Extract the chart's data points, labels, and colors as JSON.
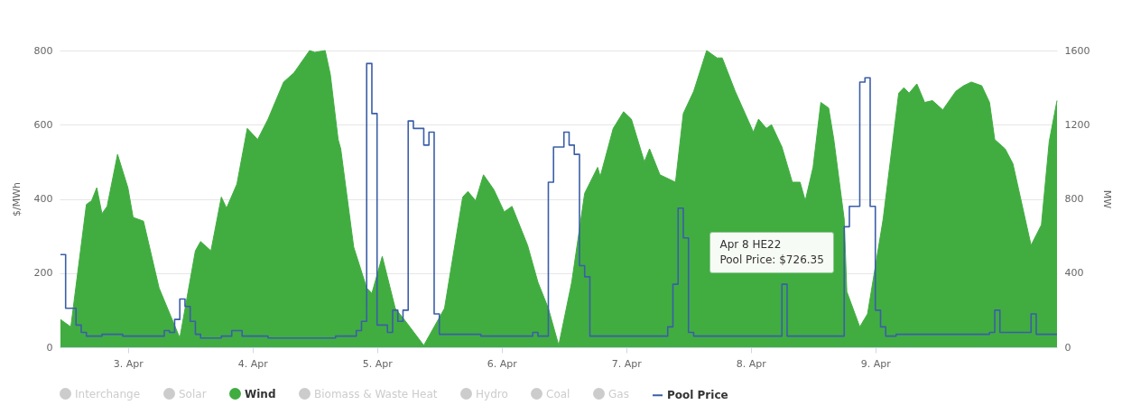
{
  "chart_data": {
    "type": "area",
    "ylabel": "$/MWh",
    "y2label": "MW",
    "xlim": [
      "--04-02T10:50",
      "--04-10T11:00"
    ],
    "xticks": [
      {
        "value": "--04-03",
        "label": "3. Apr"
      },
      {
        "value": "--04-04",
        "label": "4. Apr"
      },
      {
        "value": "--04-05",
        "label": "5. Apr"
      },
      {
        "value": "--04-06",
        "label": "6. Apr"
      },
      {
        "value": "--04-07",
        "label": "7. Apr"
      },
      {
        "value": "--04-08",
        "label": "8. Apr"
      },
      {
        "value": "--04-09",
        "label": "9. Apr"
      }
    ],
    "ylim": [
      0,
      800
    ],
    "yticks": [
      0,
      200,
      400,
      600,
      800
    ],
    "y2lim": [
      0,
      1600
    ],
    "y2ticks": [
      0,
      400,
      800,
      1200,
      1600
    ],
    "grid": "y",
    "legend": "bottom",
    "annotations": [
      "Apr 8 HE22\nPool Price: $726.35"
    ],
    "series": [
      {
        "name": "Interchange",
        "type": "area",
        "color": "#cccccc"
      },
      {
        "name": "Solar",
        "type": "area",
        "color": "#cccccc"
      },
      {
        "name": "Wind",
        "type": "area",
        "axis": "y2",
        "color": "#41ad41",
        "x": [
          "--04-02T11:00",
          "--04-02T13:00",
          "--04-02T16:00",
          "--04-02T17:00",
          "--04-02T18:00",
          "--04-02T19:00",
          "--04-02T20:00",
          "--04-02T22:00",
          "--04-03T00:00",
          "--04-03T01:00",
          "--04-03T03:00",
          "--04-03T06:00",
          "--04-03T10:00",
          "--04-03T13:00",
          "--04-03T14:00",
          "--04-03T16:00",
          "--04-03T18:00",
          "--04-03T19:00",
          "--04-03T21:00",
          "--04-03T23:00",
          "--04-04T01:00",
          "--04-04T03:00",
          "--04-04T06:00",
          "--04-04T08:00",
          "--04-04T11:00",
          "--04-04T12:00",
          "--04-04T14:00",
          "--04-04T15:00",
          "--04-04T16:30",
          "--04-04T17:00",
          "--04-04T19:30",
          "--04-04T22:00",
          "--04-04T23:00",
          "--04-05T01:00",
          "--04-05T03:30",
          "--04-05T05:30",
          "--04-05T09:00",
          "--04-05T13:00",
          "--04-05T16:30",
          "--04-05T17:30",
          "--04-05T19:00",
          "--04-05T20:30",
          "--04-05T22:30",
          "--04-06T00:30",
          "--04-06T02:00",
          "--04-06T05:00",
          "--04-06T07:00",
          "--04-06T09:00",
          "--04-06T11:00",
          "--04-06T13:30",
          "--04-06T16:00",
          "--04-06T18:30",
          "--04-06T19:00",
          "--04-06T21:30",
          "--04-06T23:30",
          "--04-07T01:00",
          "--04-07T03:30",
          "--04-07T04:30",
          "--04-07T06:30",
          "--04-07T09:30",
          "--04-07T11:00",
          "--04-07T13:00",
          "--04-07T15:30",
          "--04-07T17:30",
          "--04-07T18:30",
          "--04-07T21:00",
          "--04-08T00:30",
          "--04-08T01:30",
          "--04-08T03:00",
          "--04-08T04:00",
          "--04-08T06:00",
          "--04-08T08:00",
          "--04-08T09:30",
          "--04-08T10:30",
          "--04-08T12:00",
          "--04-08T13:30",
          "--04-08T15:00",
          "--04-08T16:00",
          "--04-08T18:00",
          "--04-08T18:30",
          "--04-08T21:00",
          "--04-08T22:30",
          "--04-09T01:30",
          "--04-09T04:30",
          "--04-09T05:30",
          "--04-09T06:30",
          "--04-09T08:00",
          "--04-09T09:30",
          "--04-09T11:00",
          "--04-09T13:00",
          "--04-09T15:30",
          "--04-09T17:00",
          "--04-09T18:30",
          "--04-09T20:30",
          "--04-09T22:00",
          "--04-09T23:00",
          "--04-10T01:00",
          "--04-10T02:30",
          "--04-10T06:00",
          "--04-10T08:00",
          "--04-10T09:30",
          "--04-10T11:00"
        ],
        "values": [
          150,
          110,
          770,
          790,
          860,
          720,
          760,
          1040,
          860,
          700,
          680,
          320,
          50,
          520,
          570,
          520,
          810,
          750,
          880,
          1180,
          1120,
          1230,
          1430,
          1480,
          1600,
          1590,
          1600,
          1470,
          1120,
          1070,
          540,
          320,
          290,
          490,
          210,
          140,
          10,
          210,
          810,
          840,
          790,
          930,
          850,
          730,
          760,
          550,
          350,
          210,
          10,
          350,
          830,
          970,
          920,
          1180,
          1270,
          1230,
          1000,
          1070,
          930,
          890,
          1260,
          1380,
          1600,
          1560,
          1560,
          1380,
          1160,
          1230,
          1180,
          1200,
          1080,
          890,
          890,
          790,
          970,
          1320,
          1290,
          1120,
          690,
          300,
          110,
          180,
          690,
          1370,
          1400,
          1370,
          1420,
          1320,
          1330,
          1280,
          1380,
          1410,
          1430,
          1410,
          1320,
          1120,
          1070,
          990,
          550,
          660,
          1110,
          1330
        ]
      },
      {
        "name": "Biomass & Waste Heat",
        "type": "area",
        "color": "#cccccc"
      },
      {
        "name": "Hydro",
        "type": "area",
        "color": "#cccccc"
      },
      {
        "name": "Coal",
        "type": "area",
        "color": "#cccccc"
      },
      {
        "name": "Gas",
        "type": "area",
        "color": "#cccccc"
      },
      {
        "name": "Pool Price",
        "type": "step",
        "color": "#3b5ea8",
        "x": [
          "--04-02T11:00",
          "--04-02T12:00",
          "--04-02T14:00",
          "--04-02T15:00",
          "--04-02T16:00",
          "--04-02T19:00",
          "--04-02T23:00",
          "--04-03T07:00",
          "--04-03T08:00",
          "--04-03T09:00",
          "--04-03T10:00",
          "--04-03T11:00",
          "--04-03T12:00",
          "--04-03T13:00",
          "--04-03T14:00",
          "--04-03T18:00",
          "--04-03T20:00",
          "--04-03T22:00",
          "--04-04T03:00",
          "--04-04T16:00",
          "--04-04T20:00",
          "--04-04T21:00",
          "--04-04T22:00",
          "--04-04T23:00",
          "--04-05T00:00",
          "--04-05T02:00",
          "--04-05T03:00",
          "--04-05T04:00",
          "--04-05T05:00",
          "--04-05T06:00",
          "--04-05T07:00",
          "--04-05T09:00",
          "--04-05T10:00",
          "--04-05T11:00",
          "--04-05T12:00",
          "--04-05T20:00",
          "--04-06T06:00",
          "--04-06T07:00",
          "--04-06T09:00",
          "--04-06T10:00",
          "--04-06T12:00",
          "--04-06T13:00",
          "--04-06T14:00",
          "--04-06T15:00",
          "--04-06T16:00",
          "--04-06T17:00",
          "--04-07T08:00",
          "--04-07T09:00",
          "--04-07T10:00",
          "--04-07T11:00",
          "--04-07T12:00",
          "--04-07T13:00",
          "--04-08T06:00",
          "--04-08T07:00",
          "--04-08T18:00",
          "--04-08T19:00",
          "--04-08T21:00",
          "--04-08T22:00",
          "--04-08T23:00",
          "--04-09T00:00",
          "--04-09T01:00",
          "--04-09T02:00",
          "--04-09T04:00",
          "--04-09T22:00",
          "--04-09T23:00",
          "--04-10T00:00",
          "--04-10T06:00",
          "--04-10T07:00",
          "--04-10T11:00"
        ],
        "values": [
          250,
          105,
          60,
          40,
          30,
          35,
          30,
          45,
          40,
          75,
          130,
          110,
          70,
          35,
          25,
          30,
          45,
          30,
          25,
          30,
          45,
          70,
          765,
          630,
          60,
          40,
          100,
          70,
          100,
          610,
          590,
          545,
          580,
          90,
          35,
          30,
          40,
          30,
          445,
          540,
          580,
          545,
          520,
          220,
          190,
          30,
          55,
          170,
          375,
          295,
          40,
          30,
          170,
          30,
          325,
          380,
          715,
          726.35,
          380,
          100,
          55,
          30,
          35,
          40,
          100,
          40,
          90,
          35,
          35
        ]
      }
    ]
  }
}
